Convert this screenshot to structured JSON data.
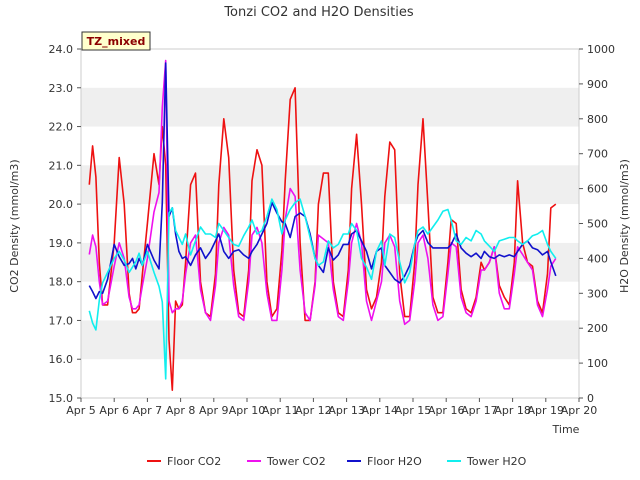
{
  "chart_data": {
    "type": "line",
    "title": "Tonzi CO2 and H2O Densities",
    "xlabel": "Time",
    "ylabel_left": "CO2 Density (mmol/m3)",
    "ylabel_right": "H2O Density (mmol/m3)",
    "badge": "TZ_mixed",
    "xlim": [
      5,
      20
    ],
    "ylim_left": [
      15.0,
      24.0
    ],
    "ylim_right": [
      0,
      1000
    ],
    "x_ticks": [
      5,
      6,
      7,
      8,
      9,
      10,
      11,
      12,
      13,
      14,
      15,
      16,
      17,
      18,
      19,
      20
    ],
    "x_tick_labels": [
      "Apr 5",
      "Apr 6",
      "Apr 7",
      "Apr 8",
      "Apr 9",
      "Apr 10",
      "Apr 11",
      "Apr 12",
      "Apr 13",
      "Apr 14",
      "Apr 15",
      "Apr 16",
      "Apr 17",
      "Apr 18",
      "Apr 19",
      "Apr 20"
    ],
    "y_left_ticks": [
      15.0,
      16.0,
      17.0,
      18.0,
      19.0,
      20.0,
      21.0,
      22.0,
      23.0,
      24.0
    ],
    "y_left_tick_labels": [
      "15.0",
      "16.0",
      "17.0",
      "18.0",
      "19.0",
      "20.0",
      "21.0",
      "22.0",
      "23.0",
      "24.0"
    ],
    "y_right_ticks": [
      0,
      100,
      200,
      300,
      400,
      500,
      600,
      700,
      800,
      900,
      1000
    ],
    "y_right_tick_labels": [
      "0",
      "100",
      "200",
      "300",
      "400",
      "500",
      "600",
      "700",
      "800",
      "900",
      "1000"
    ],
    "grid_bands": true,
    "legend_position": "bottom-center",
    "series": [
      {
        "name": "Floor CO2",
        "axis": "left",
        "color": "#ee1111",
        "x": [
          5.25,
          5.35,
          5.45,
          5.55,
          5.65,
          5.8,
          6.0,
          6.15,
          6.3,
          6.45,
          6.55,
          6.65,
          6.75,
          6.85,
          7.0,
          7.2,
          7.35,
          7.45,
          7.55,
          7.65,
          7.75,
          7.85,
          7.95,
          8.05,
          8.15,
          8.3,
          8.45,
          8.6,
          8.75,
          8.9,
          9.05,
          9.15,
          9.3,
          9.45,
          9.6,
          9.75,
          9.9,
          10.05,
          10.15,
          10.3,
          10.45,
          10.6,
          10.75,
          10.9,
          11.05,
          11.15,
          11.3,
          11.45,
          11.6,
          11.75,
          11.9,
          12.05,
          12.15,
          12.3,
          12.45,
          12.6,
          12.75,
          12.9,
          13.05,
          13.15,
          13.3,
          13.45,
          13.6,
          13.75,
          13.9,
          14.05,
          14.15,
          14.3,
          14.45,
          14.6,
          14.75,
          14.9,
          15.05,
          15.15,
          15.3,
          15.45,
          15.6,
          15.75,
          15.9,
          16.05,
          16.15,
          16.3,
          16.45,
          16.6,
          16.75,
          16.9,
          17.05,
          17.15,
          17.3,
          17.45,
          17.6,
          17.75,
          17.9,
          18.05,
          18.15,
          18.3,
          18.45,
          18.6,
          18.75,
          18.9,
          19.05,
          19.15,
          19.3
        ],
        "values": [
          20.5,
          21.5,
          20.7,
          18.5,
          17.4,
          17.4,
          19.0,
          21.2,
          20.0,
          17.7,
          17.2,
          17.2,
          17.3,
          18.2,
          19.5,
          21.3,
          20.5,
          22.0,
          21.0,
          16.5,
          15.2,
          17.5,
          17.3,
          17.4,
          18.5,
          20.5,
          20.8,
          18.0,
          17.2,
          17.1,
          18.2,
          20.5,
          22.2,
          21.2,
          18.3,
          17.2,
          17.1,
          18.3,
          20.6,
          21.4,
          21.0,
          18.0,
          17.1,
          17.3,
          18.8,
          20.6,
          22.7,
          23.0,
          19.0,
          17.0,
          17.0,
          18.0,
          20.0,
          20.8,
          20.8,
          18.0,
          17.2,
          17.1,
          18.3,
          20.4,
          21.8,
          20.0,
          17.8,
          17.3,
          17.6,
          18.5,
          20.2,
          21.6,
          21.4,
          18.2,
          17.1,
          17.1,
          18.5,
          20.5,
          22.2,
          20.0,
          17.6,
          17.2,
          17.2,
          18.5,
          19.6,
          19.5,
          17.8,
          17.3,
          17.2,
          17.6,
          18.5,
          18.3,
          18.5,
          18.9,
          17.9,
          17.6,
          17.4,
          18.5,
          20.6,
          19.0,
          18.5,
          18.4,
          17.5,
          17.2,
          18.2,
          19.9,
          20.0
        ]
      },
      {
        "name": "Tower CO2",
        "axis": "left",
        "color": "#ee11ee",
        "x": [
          5.25,
          5.35,
          5.45,
          5.55,
          5.65,
          5.8,
          6.0,
          6.15,
          6.3,
          6.45,
          6.55,
          6.65,
          6.75,
          6.85,
          7.0,
          7.2,
          7.35,
          7.45,
          7.55,
          7.65,
          7.75,
          7.85,
          7.95,
          8.05,
          8.15,
          8.3,
          8.45,
          8.6,
          8.75,
          8.9,
          9.05,
          9.15,
          9.3,
          9.45,
          9.6,
          9.75,
          9.9,
          10.05,
          10.15,
          10.3,
          10.45,
          10.6,
          10.75,
          10.9,
          11.05,
          11.15,
          11.3,
          11.45,
          11.6,
          11.75,
          11.9,
          12.05,
          12.15,
          12.3,
          12.45,
          12.6,
          12.75,
          12.9,
          13.05,
          13.15,
          13.3,
          13.45,
          13.6,
          13.75,
          13.9,
          14.05,
          14.15,
          14.3,
          14.45,
          14.6,
          14.75,
          14.9,
          15.05,
          15.15,
          15.3,
          15.45,
          15.6,
          15.75,
          15.9,
          16.05,
          16.15,
          16.3,
          16.45,
          16.6,
          16.75,
          16.9,
          17.05,
          17.15,
          17.3,
          17.45,
          17.6,
          17.75,
          17.9,
          18.05,
          18.15,
          18.3,
          18.45,
          18.6,
          18.75,
          18.9,
          19.05,
          19.15,
          19.3
        ],
        "values": [
          18.7,
          19.2,
          18.9,
          18.0,
          17.4,
          17.5,
          18.4,
          19.0,
          18.6,
          17.6,
          17.3,
          17.3,
          17.4,
          17.9,
          18.6,
          19.8,
          20.3,
          22.5,
          23.7,
          17.5,
          17.2,
          17.3,
          17.3,
          17.5,
          18.2,
          19.0,
          19.2,
          17.8,
          17.2,
          17.0,
          17.9,
          19.0,
          19.4,
          19.2,
          17.9,
          17.1,
          17.0,
          18.0,
          19.2,
          19.4,
          19.0,
          17.7,
          17.0,
          17.0,
          18.3,
          19.6,
          20.4,
          20.2,
          18.3,
          17.2,
          17.0,
          17.9,
          19.2,
          19.1,
          19.0,
          17.8,
          17.1,
          17.0,
          18.0,
          19.0,
          19.5,
          19.0,
          17.5,
          17.0,
          17.5,
          18.0,
          19.0,
          19.2,
          18.9,
          17.5,
          16.9,
          17.0,
          18.0,
          19.0,
          19.2,
          18.6,
          17.4,
          17.0,
          17.1,
          18.2,
          19.0,
          18.9,
          17.6,
          17.2,
          17.1,
          17.5,
          18.3,
          18.3,
          18.5,
          18.9,
          17.7,
          17.3,
          17.3,
          18.2,
          18.9,
          18.7,
          18.5,
          18.3,
          17.4,
          17.1,
          17.8,
          18.4,
          18.6
        ]
      },
      {
        "name": "Floor H2O",
        "axis": "right",
        "color": "#1111cc",
        "x": [
          5.25,
          5.35,
          5.45,
          5.55,
          5.65,
          5.8,
          6.0,
          6.15,
          6.3,
          6.45,
          6.55,
          6.65,
          6.75,
          6.85,
          7.0,
          7.2,
          7.35,
          7.45,
          7.55,
          7.65,
          7.75,
          7.85,
          7.95,
          8.05,
          8.15,
          8.3,
          8.45,
          8.6,
          8.75,
          8.9,
          9.05,
          9.15,
          9.3,
          9.45,
          9.6,
          9.75,
          9.9,
          10.05,
          10.15,
          10.3,
          10.45,
          10.6,
          10.75,
          10.9,
          11.05,
          11.15,
          11.3,
          11.45,
          11.6,
          11.75,
          11.9,
          12.05,
          12.15,
          12.3,
          12.45,
          12.6,
          12.75,
          12.9,
          13.05,
          13.15,
          13.3,
          13.45,
          13.6,
          13.75,
          13.9,
          14.05,
          14.15,
          14.3,
          14.45,
          14.6,
          14.75,
          14.9,
          15.05,
          15.15,
          15.3,
          15.45,
          15.6,
          15.75,
          15.9,
          16.05,
          16.15,
          16.3,
          16.45,
          16.6,
          16.75,
          16.9,
          17.05,
          17.15,
          17.3,
          17.45,
          17.6,
          17.75,
          17.9,
          18.05,
          18.15,
          18.3,
          18.45,
          18.6,
          18.75,
          18.9,
          19.05,
          19.15,
          19.3
        ],
        "values": [
          322,
          305,
          285,
          305,
          300,
          340,
          440,
          405,
          380,
          385,
          400,
          370,
          400,
          380,
          440,
          395,
          370,
          560,
          960,
          520,
          545,
          470,
          420,
          400,
          405,
          380,
          410,
          430,
          400,
          420,
          450,
          470,
          420,
          400,
          420,
          425,
          410,
          400,
          420,
          440,
          470,
          500,
          560,
          530,
          505,
          500,
          460,
          520,
          530,
          520,
          470,
          400,
          380,
          360,
          430,
          395,
          410,
          440,
          440,
          470,
          480,
          450,
          420,
          370,
          420,
          430,
          380,
          360,
          340,
          330,
          350,
          380,
          440,
          465,
          480,
          445,
          430,
          430,
          430,
          430,
          440,
          470,
          430,
          415,
          405,
          415,
          400,
          420,
          405,
          400,
          410,
          405,
          410,
          405,
          420,
          440,
          450,
          430,
          425,
          410,
          420,
          390,
          350
        ]
      },
      {
        "name": "Tower H2O",
        "axis": "right",
        "color": "#11eeee",
        "x": [
          5.25,
          5.35,
          5.45,
          5.55,
          5.65,
          5.8,
          6.0,
          6.15,
          6.3,
          6.45,
          6.55,
          6.65,
          6.75,
          6.85,
          7.0,
          7.2,
          7.35,
          7.45,
          7.55,
          7.65,
          7.75,
          7.85,
          7.95,
          8.05,
          8.15,
          8.3,
          8.45,
          8.6,
          8.75,
          8.9,
          9.05,
          9.15,
          9.3,
          9.45,
          9.6,
          9.75,
          9.9,
          10.05,
          10.15,
          10.3,
          10.45,
          10.6,
          10.75,
          10.9,
          11.05,
          11.15,
          11.3,
          11.45,
          11.6,
          11.75,
          11.9,
          12.05,
          12.15,
          12.3,
          12.45,
          12.6,
          12.75,
          12.9,
          13.05,
          13.15,
          13.3,
          13.45,
          13.6,
          13.75,
          13.9,
          14.05,
          14.15,
          14.3,
          14.45,
          14.6,
          14.75,
          14.9,
          15.05,
          15.15,
          15.3,
          15.45,
          15.6,
          15.75,
          15.9,
          16.05,
          16.15,
          16.3,
          16.45,
          16.6,
          16.75,
          16.9,
          17.05,
          17.15,
          17.3,
          17.45,
          17.6,
          17.75,
          17.9,
          18.05,
          18.15,
          18.3,
          18.45,
          18.6,
          18.75,
          18.9,
          19.05,
          19.15,
          19.3
        ],
        "values": [
          250,
          215,
          195,
          280,
          330,
          360,
          400,
          420,
          395,
          360,
          375,
          390,
          415,
          380,
          420,
          360,
          320,
          275,
          55,
          530,
          545,
          480,
          460,
          440,
          470,
          410,
          450,
          490,
          470,
          470,
          460,
          500,
          480,
          460,
          440,
          435,
          465,
          490,
          510,
          470,
          480,
          520,
          570,
          540,
          470,
          510,
          540,
          560,
          570,
          520,
          460,
          400,
          380,
          390,
          450,
          430,
          440,
          470,
          470,
          500,
          480,
          400,
          375,
          340,
          420,
          450,
          380,
          470,
          460,
          390,
          330,
          360,
          440,
          480,
          490,
          470,
          490,
          510,
          535,
          540,
          510,
          450,
          440,
          460,
          450,
          480,
          470,
          450,
          435,
          420,
          450,
          455,
          460,
          460,
          450,
          440,
          450,
          465,
          470,
          480,
          440,
          420,
          400
        ]
      }
    ]
  }
}
